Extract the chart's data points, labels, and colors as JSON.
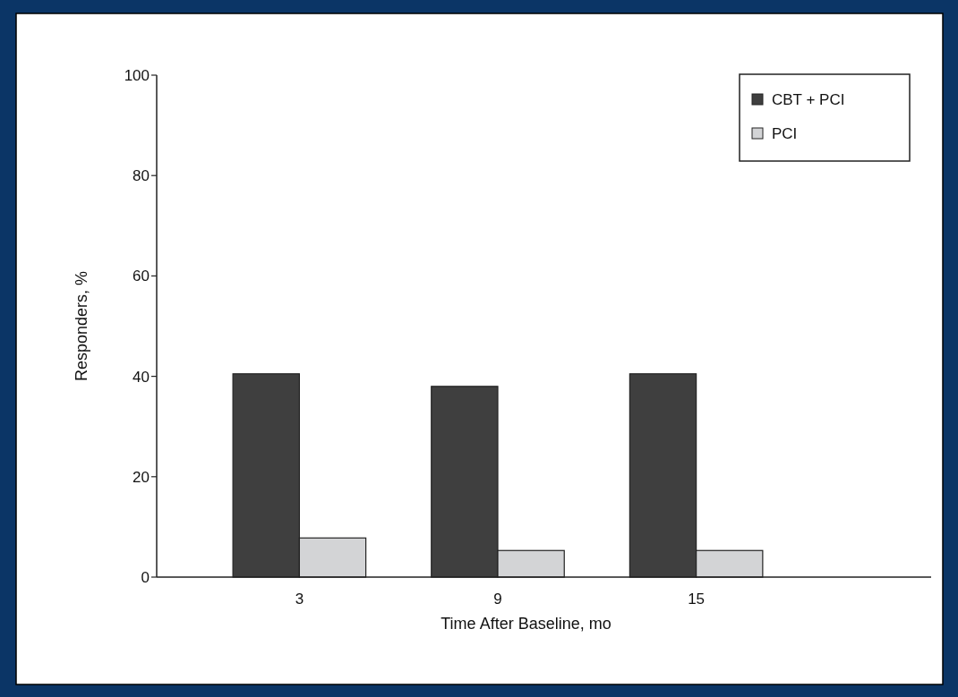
{
  "chart_data": {
    "type": "bar",
    "xlabel": "Time After Baseline, mo",
    "ylabel": "Responders, %",
    "categories": [
      "3",
      "9",
      "15"
    ],
    "series": [
      {
        "name": "CBT + PCI",
        "color": "#3f3f3f",
        "values": [
          40.5,
          38,
          40.5
        ]
      },
      {
        "name": "PCI",
        "color": "#d3d4d6",
        "values": [
          7.8,
          5.3,
          5.3
        ]
      }
    ],
    "ylim": [
      0,
      100
    ],
    "yticks": [
      0,
      20,
      40,
      60,
      80,
      100
    ],
    "legend": "top right",
    "grid": false
  }
}
